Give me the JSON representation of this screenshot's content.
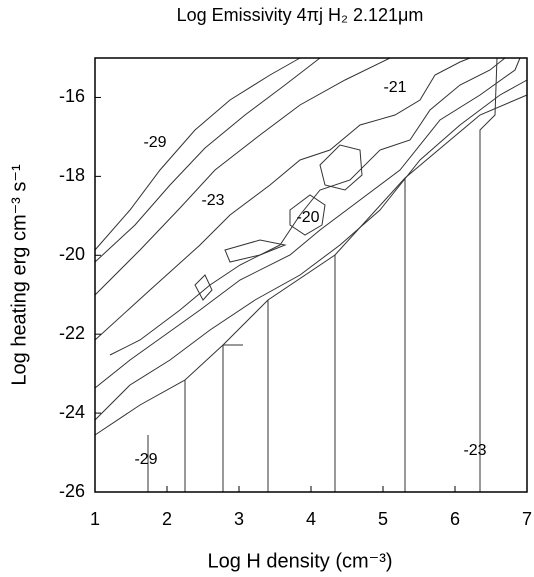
{
  "chart_data": {
    "type": "contour",
    "title": "Log Emissivity 4πj H₂ 2.121μm",
    "x_label": "Log H density (cm⁻³)",
    "y_label": "Log heating erg cm⁻³ s⁻¹",
    "xlim": [
      1,
      7
    ],
    "xticks": [
      1,
      2,
      3,
      4,
      5,
      6,
      7
    ],
    "ylim": [
      -26,
      -15
    ],
    "yticks": [
      -26,
      -24,
      -22,
      -20,
      -18,
      -16
    ],
    "contour_labels": [
      -29,
      -23,
      -21,
      -20,
      -29,
      -23
    ],
    "color": "#333333"
  }
}
